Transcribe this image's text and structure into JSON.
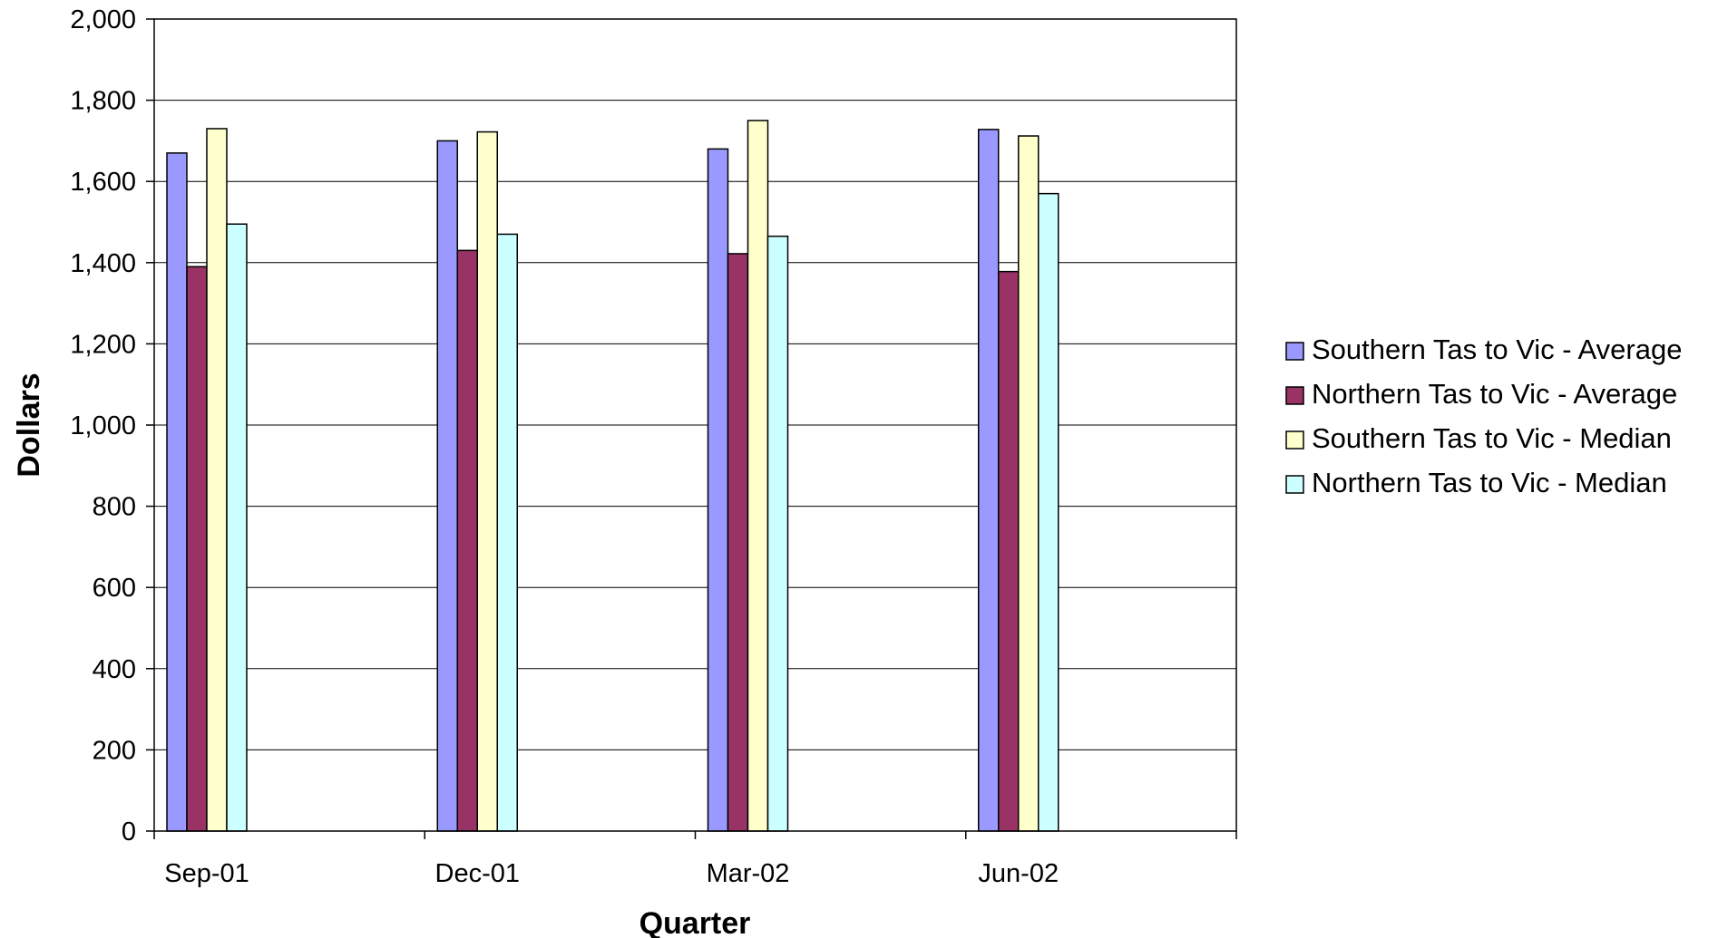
{
  "chart_data": {
    "type": "bar",
    "title": "",
    "xlabel": "Quarter",
    "ylabel": "Dollars",
    "ylim": [
      0,
      2000
    ],
    "ytick_step": 200,
    "ytick_labels": [
      "0",
      "200",
      "400",
      "600",
      "800",
      "1,000",
      "1,200",
      "1,400",
      "1,600",
      "1,800",
      "2,000"
    ],
    "categories": [
      "Sep-01",
      "Dec-01",
      "Mar-02",
      "Jun-02"
    ],
    "series": [
      {
        "name": "Southern Tas to Vic - Average",
        "values": [
          1670,
          1700,
          1680,
          1728
        ],
        "color": "#9999ff"
      },
      {
        "name": "Northern Tas to Vic - Average",
        "values": [
          1390,
          1430,
          1422,
          1378
        ],
        "color": "#993366"
      },
      {
        "name": "Southern Tas to Vic - Median",
        "values": [
          1730,
          1722,
          1750,
          1712
        ],
        "color": "#ffffcc"
      },
      {
        "name": "Northern Tas to Vic - Median",
        "values": [
          1495,
          1470,
          1465,
          1570
        ],
        "color": "#ccffff"
      }
    ],
    "grid": true,
    "legend_position": "right"
  }
}
